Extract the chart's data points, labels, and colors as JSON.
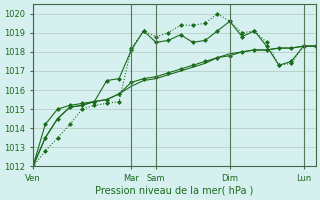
{
  "title": "",
  "xlabel": "Pression niveau de la mer( hPa )",
  "ylabel": "",
  "ylim": [
    1012,
    1020.5
  ],
  "yticks": [
    1012,
    1013,
    1014,
    1015,
    1016,
    1017,
    1018,
    1019,
    1020
  ],
  "background_color": "#d6f0f0",
  "line_color": "#1a6b1a",
  "day_labels": [
    "Ven",
    "Mar",
    "Sam",
    "Dim",
    "Lun"
  ],
  "day_positions": [
    0,
    8,
    10,
    16,
    22
  ],
  "series": [
    [
      1012.0,
      1012.8,
      1013.5,
      1014.2,
      1015.0,
      1015.2,
      1015.3,
      1015.4,
      1018.2,
      1019.1,
      1018.8,
      1019.0,
      1019.4,
      1019.4,
      1019.5,
      1020.0,
      1019.6,
      1019.0,
      1019.1,
      1018.5,
      1017.3,
      1017.4,
      1018.3,
      1018.3
    ],
    [
      1012.0,
      1013.5,
      1014.5,
      1015.1,
      1015.2,
      1015.4,
      1015.5,
      1015.8,
      1016.4,
      1016.6,
      1016.7,
      1016.9,
      1017.1,
      1017.3,
      1017.5,
      1017.7,
      1017.8,
      1018.0,
      1018.1,
      1018.1,
      1018.2,
      1018.2,
      1018.3,
      1018.3
    ],
    [
      1012.0,
      1013.5,
      1014.5,
      1015.1,
      1015.2,
      1015.4,
      1015.5,
      1015.8,
      1016.2,
      1016.5,
      1016.6,
      1016.8,
      1017.0,
      1017.2,
      1017.4,
      1017.7,
      1017.9,
      1018.0,
      1018.1,
      1018.1,
      1018.2,
      1018.2,
      1018.3,
      1018.3
    ],
    [
      1012.0,
      1014.2,
      1015.0,
      1015.2,
      1015.3,
      1015.4,
      1016.5,
      1016.6,
      1018.1,
      1019.1,
      1018.5,
      1018.6,
      1018.9,
      1018.5,
      1018.6,
      1019.1,
      1019.6,
      1018.8,
      1019.1,
      1018.3,
      1017.3,
      1017.5,
      1018.3,
      1018.3
    ]
  ],
  "series_styles": [
    {
      "linestyle": "dotted",
      "marker": "D",
      "markersize": 2,
      "linewidth": 0.8
    },
    {
      "linestyle": "solid",
      "marker": "D",
      "markersize": 2,
      "linewidth": 0.8
    },
    {
      "linestyle": "solid",
      "marker": null,
      "markersize": 0,
      "linewidth": 0.8
    },
    {
      "linestyle": "solid",
      "marker": "D",
      "markersize": 2,
      "linewidth": 0.8
    }
  ]
}
